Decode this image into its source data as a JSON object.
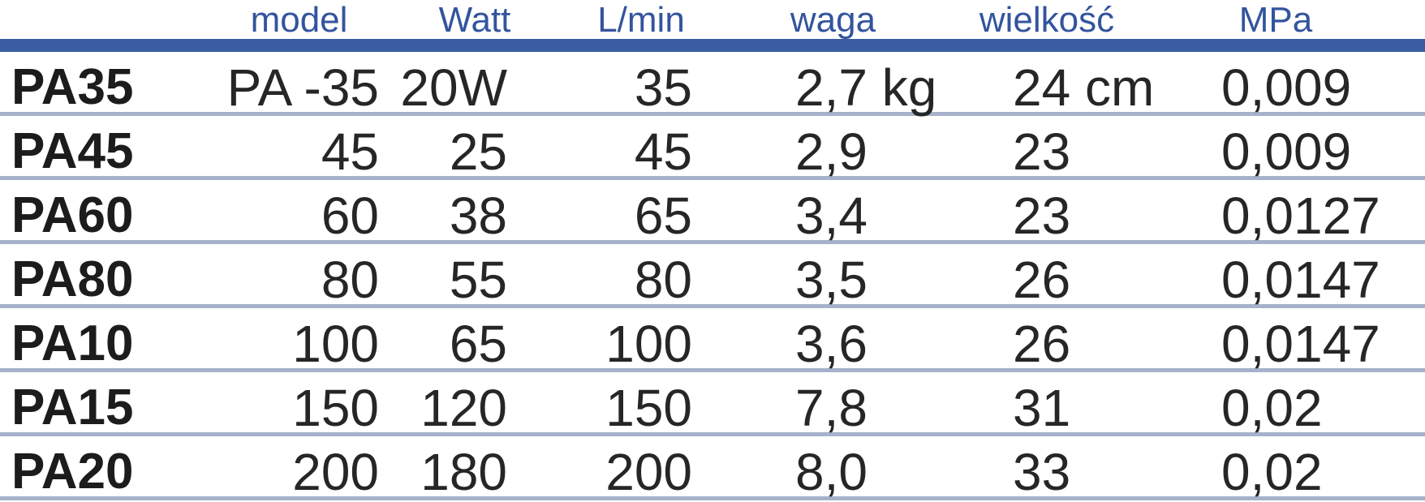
{
  "colors": {
    "header_text": "#33549E",
    "header_bar": "#3A5CA0",
    "row_separator": "#A6B2CA",
    "data_text": "#262626",
    "label_text": "#1C1C1C",
    "background": "#FFFFFF"
  },
  "headers": {
    "label": "",
    "model": "model",
    "watt": "Watt",
    "lmin": "L/min",
    "waga": "waga",
    "wielkosc": "wielkość",
    "mpa": "MPa"
  },
  "rows": [
    {
      "label": "PA35",
      "model": "PA -35",
      "watt": "20W",
      "lmin": "35",
      "waga": "2,7 kg",
      "wielkosc": "24 cm",
      "mpa": "0,009"
    },
    {
      "label": "PA45",
      "model": "45",
      "watt": "25",
      "lmin": "45",
      "waga": "2,9",
      "wielkosc": "23",
      "mpa": "0,009"
    },
    {
      "label": "PA60",
      "model": "60",
      "watt": "38",
      "lmin": "65",
      "waga": "3,4",
      "wielkosc": "23",
      "mpa": "0,0127"
    },
    {
      "label": "PA80",
      "model": "80",
      "watt": "55",
      "lmin": "80",
      "waga": "3,5",
      "wielkosc": "26",
      "mpa": "0,0147"
    },
    {
      "label": "PA10",
      "model": "100",
      "watt": "65",
      "lmin": "100",
      "waga": "3,6",
      "wielkosc": "26",
      "mpa": "0,0147"
    },
    {
      "label": "PA15",
      "model": "150",
      "watt": "120",
      "lmin": "150",
      "waga": "7,8",
      "wielkosc": "31",
      "mpa": "0,02"
    },
    {
      "label": "PA20",
      "model": "200",
      "watt": "180",
      "lmin": "200",
      "waga": "8,0",
      "wielkosc": "33",
      "mpa": "0,02"
    }
  ],
  "chart_data": {
    "type": "table",
    "title": "",
    "columns": [
      "",
      "model",
      "Watt",
      "L/min",
      "waga",
      "wielkość",
      "MPa"
    ],
    "rows": [
      [
        "PA35",
        "PA -35",
        "20W",
        "35",
        "2,7 kg",
        "24 cm",
        "0,009"
      ],
      [
        "PA45",
        "45",
        "25",
        "45",
        "2,9",
        "23",
        "0,009"
      ],
      [
        "PA60",
        "60",
        "38",
        "65",
        "3,4",
        "23",
        "0,0127"
      ],
      [
        "PA80",
        "80",
        "55",
        "80",
        "3,5",
        "26",
        "0,0147"
      ],
      [
        "PA10",
        "100",
        "65",
        "100",
        "3,6",
        "26",
        "0,0147"
      ],
      [
        "PA15",
        "150",
        "120",
        "150",
        "7,8",
        "31",
        "0,02"
      ],
      [
        "PA20",
        "200",
        "180",
        "200",
        "8,0",
        "33",
        "0,02"
      ]
    ]
  }
}
